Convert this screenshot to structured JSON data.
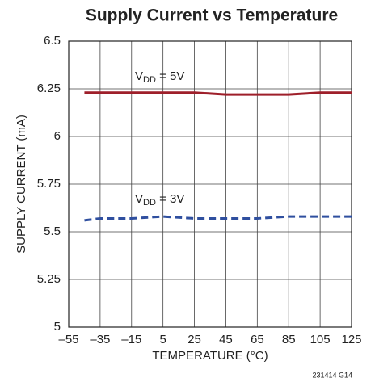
{
  "chart_data": {
    "type": "line",
    "title": "Supply Current vs Temperature",
    "xlabel": "TEMPERATURE (°C)",
    "ylabel": "SUPPLY CURRENT (mA)",
    "footnote": "231414 G14",
    "x": [
      -45,
      -35,
      -15,
      5,
      25,
      45,
      65,
      85,
      105,
      125
    ],
    "series": [
      {
        "color": "#9e1f2a",
        "dash": false,
        "values": [
          6.23,
          6.23,
          6.23,
          6.23,
          6.23,
          6.22,
          6.22,
          6.22,
          6.23,
          6.23
        ]
      },
      {
        "color": "#2f4f9f",
        "dash": true,
        "values": [
          5.56,
          5.57,
          5.57,
          5.58,
          5.57,
          5.57,
          5.57,
          5.58,
          5.58,
          5.58
        ]
      }
    ],
    "annotations": [
      {
        "parts": [
          "V",
          "DD",
          " = 5V"
        ]
      },
      {
        "parts": [
          "V",
          "DD",
          " = 3V"
        ]
      }
    ],
    "xlim": [
      -55,
      125
    ],
    "xticks": [
      {
        "value": -55,
        "label": "–55"
      },
      {
        "value": -35,
        "label": "–35"
      },
      {
        "value": -15,
        "label": "–15"
      },
      5,
      25,
      45,
      65,
      85,
      105,
      125
    ],
    "ylim": [
      5,
      6.5
    ],
    "yticks": [
      5,
      5.25,
      5.5,
      5.75,
      6,
      6.25,
      6.5
    ],
    "grid": true
  }
}
